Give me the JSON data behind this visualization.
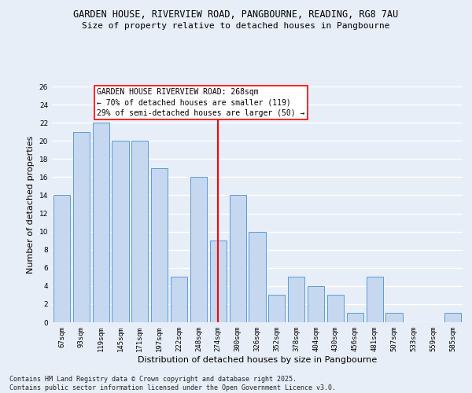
{
  "title1": "GARDEN HOUSE, RIVERVIEW ROAD, PANGBOURNE, READING, RG8 7AU",
  "title2": "Size of property relative to detached houses in Pangbourne",
  "xlabel": "Distribution of detached houses by size in Pangbourne",
  "ylabel": "Number of detached properties",
  "categories": [
    "67sqm",
    "93sqm",
    "119sqm",
    "145sqm",
    "171sqm",
    "197sqm",
    "222sqm",
    "248sqm",
    "274sqm",
    "300sqm",
    "326sqm",
    "352sqm",
    "378sqm",
    "404sqm",
    "430sqm",
    "456sqm",
    "481sqm",
    "507sqm",
    "533sqm",
    "559sqm",
    "585sqm"
  ],
  "values": [
    14,
    21,
    22,
    20,
    20,
    17,
    5,
    16,
    9,
    14,
    10,
    3,
    5,
    4,
    3,
    1,
    5,
    1,
    0,
    0,
    1
  ],
  "bar_color": "#c5d8f0",
  "bar_edge_color": "#5b9bd5",
  "red_line_x": 8,
  "annotation_text": "GARDEN HOUSE RIVERVIEW ROAD: 268sqm\n← 70% of detached houses are smaller (119)\n29% of semi-detached houses are larger (50) →",
  "ylim": [
    0,
    26
  ],
  "yticks": [
    0,
    2,
    4,
    6,
    8,
    10,
    12,
    14,
    16,
    18,
    20,
    22,
    24,
    26
  ],
  "footer": "Contains HM Land Registry data © Crown copyright and database right 2025.\nContains public sector information licensed under the Open Government Licence v3.0.",
  "bg_color": "#e8eef8",
  "plot_bg_color": "#e8eef8",
  "grid_color": "#ffffff",
  "title_fontsize": 8.5,
  "subtitle_fontsize": 8.0,
  "annotation_fontsize": 7.0,
  "tick_fontsize": 6.5,
  "ylabel_fontsize": 8.0,
  "xlabel_fontsize": 8.0,
  "footer_fontsize": 6.0
}
